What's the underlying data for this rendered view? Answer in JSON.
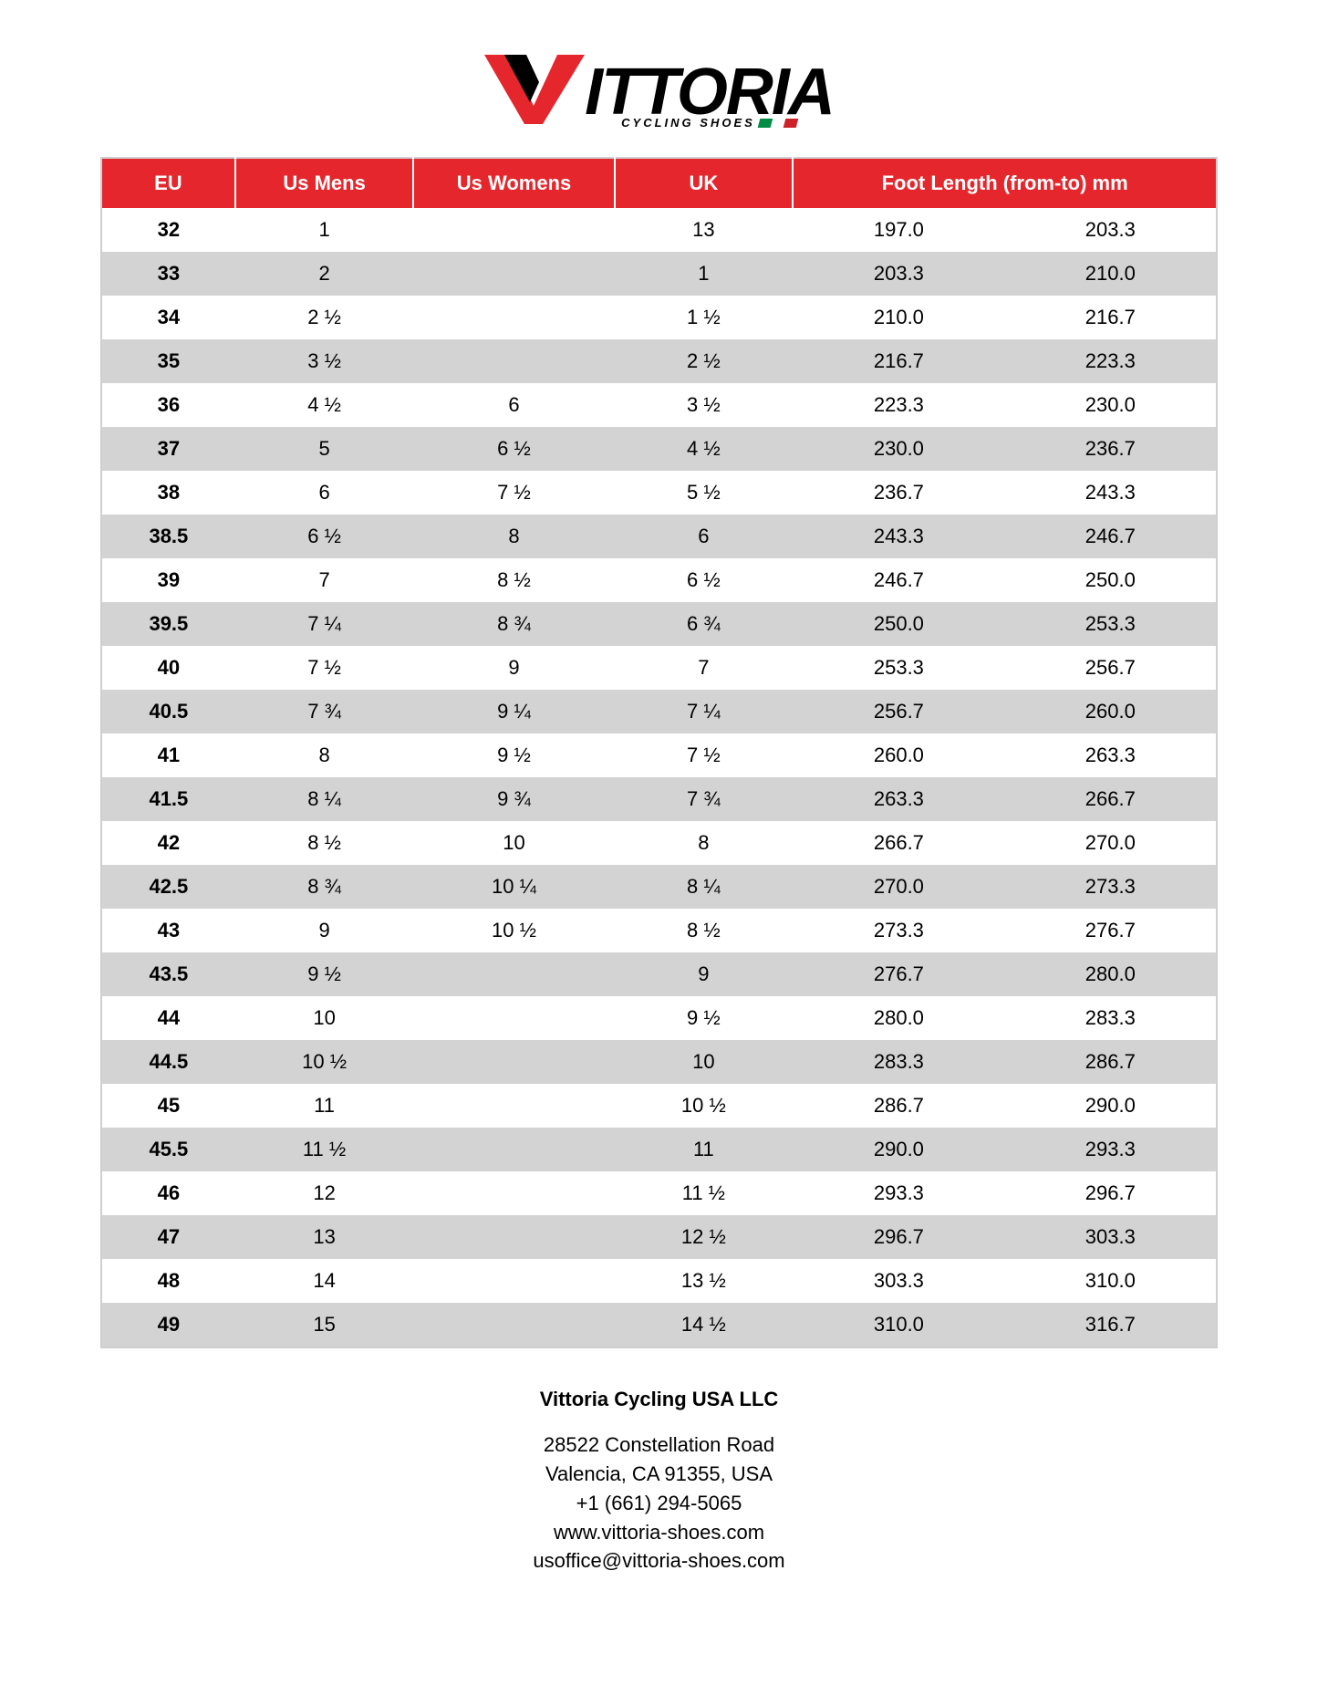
{
  "logo": {
    "brand_text": "ITTORIA",
    "tagline": "CYCLING SHOES",
    "v_red": "#e5272d",
    "v_black": "#000000",
    "flag_colors": [
      "#008c45",
      "#ffffff",
      "#cd212a"
    ]
  },
  "table": {
    "header_bg": "#e5272d",
    "header_fg": "#ffffff",
    "row_alt_bg": "#d3d3d3",
    "row_bg": "#ffffff",
    "border_color": "#cfcfcf",
    "columns": [
      "EU",
      "Us Mens",
      "Us Womens",
      "UK",
      "Foot Length (from-to) mm"
    ],
    "col_widths": [
      "12%",
      "16%",
      "18%",
      "16%",
      "19%",
      "19%"
    ],
    "rows": [
      {
        "eu": "32",
        "mens": "1",
        "womens": "",
        "uk": "13",
        "from": "197.0",
        "to": "203.3"
      },
      {
        "eu": "33",
        "mens": "2",
        "womens": "",
        "uk": "1",
        "from": "203.3",
        "to": "210.0"
      },
      {
        "eu": "34",
        "mens": "2 ½",
        "womens": "",
        "uk": "1 ½",
        "from": "210.0",
        "to": "216.7"
      },
      {
        "eu": "35",
        "mens": "3 ½",
        "womens": "",
        "uk": "2 ½",
        "from": "216.7",
        "to": "223.3"
      },
      {
        "eu": "36",
        "mens": "4 ½",
        "womens": "6",
        "uk": "3 ½",
        "from": "223.3",
        "to": "230.0"
      },
      {
        "eu": "37",
        "mens": "5",
        "womens": "6 ½",
        "uk": "4 ½",
        "from": "230.0",
        "to": "236.7"
      },
      {
        "eu": "38",
        "mens": "6",
        "womens": "7 ½",
        "uk": "5 ½",
        "from": "236.7",
        "to": "243.3"
      },
      {
        "eu": "38.5",
        "mens": "6 ½",
        "womens": "8",
        "uk": "6",
        "from": "243.3",
        "to": "246.7"
      },
      {
        "eu": "39",
        "mens": "7",
        "womens": "8 ½",
        "uk": "6 ½",
        "from": "246.7",
        "to": "250.0"
      },
      {
        "eu": "39.5",
        "mens": "7 ¼",
        "womens": "8 ¾",
        "uk": "6 ¾",
        "from": "250.0",
        "to": "253.3"
      },
      {
        "eu": "40",
        "mens": "7 ½",
        "womens": "9",
        "uk": "7",
        "from": "253.3",
        "to": "256.7"
      },
      {
        "eu": "40.5",
        "mens": "7 ¾",
        "womens": "9 ¼",
        "uk": "7 ¼",
        "from": "256.7",
        "to": "260.0"
      },
      {
        "eu": "41",
        "mens": "8",
        "womens": "9 ½",
        "uk": "7 ½",
        "from": "260.0",
        "to": "263.3"
      },
      {
        "eu": "41.5",
        "mens": "8 ¼",
        "womens": "9 ¾",
        "uk": "7 ¾",
        "from": "263.3",
        "to": "266.7"
      },
      {
        "eu": "42",
        "mens": "8 ½",
        "womens": "10",
        "uk": "8",
        "from": "266.7",
        "to": "270.0"
      },
      {
        "eu": "42.5",
        "mens": "8 ¾",
        "womens": "10 ¼",
        "uk": "8 ¼",
        "from": "270.0",
        "to": "273.3"
      },
      {
        "eu": "43",
        "mens": "9",
        "womens": "10 ½",
        "uk": "8 ½",
        "from": "273.3",
        "to": "276.7"
      },
      {
        "eu": "43.5",
        "mens": "9 ½",
        "womens": "",
        "uk": "9",
        "from": "276.7",
        "to": "280.0"
      },
      {
        "eu": "44",
        "mens": "10",
        "womens": "",
        "uk": "9 ½",
        "from": "280.0",
        "to": "283.3"
      },
      {
        "eu": "44.5",
        "mens": "10 ½",
        "womens": "",
        "uk": "10",
        "from": "283.3",
        "to": "286.7"
      },
      {
        "eu": "45",
        "mens": "11",
        "womens": "",
        "uk": "10 ½",
        "from": "286.7",
        "to": "290.0"
      },
      {
        "eu": "45.5",
        "mens": "11 ½",
        "womens": "",
        "uk": "11",
        "from": "290.0",
        "to": "293.3"
      },
      {
        "eu": "46",
        "mens": "12",
        "womens": "",
        "uk": "11 ½",
        "from": "293.3",
        "to": "296.7"
      },
      {
        "eu": "47",
        "mens": "13",
        "womens": "",
        "uk": "12 ½",
        "from": "296.7",
        "to": "303.3"
      },
      {
        "eu": "48",
        "mens": "14",
        "womens": "",
        "uk": "13 ½",
        "from": "303.3",
        "to": "310.0"
      },
      {
        "eu": "49",
        "mens": "15",
        "womens": "",
        "uk": "14 ½",
        "from": "310.0",
        "to": "316.7"
      }
    ]
  },
  "footer": {
    "company": "Vittoria Cycling USA LLC",
    "lines": [
      "28522 Constellation Road",
      "Valencia, CA 91355, USA",
      "+1 (661) 294-5065",
      "www.vittoria-shoes.com",
      "usoffice@vittoria-shoes.com"
    ]
  }
}
